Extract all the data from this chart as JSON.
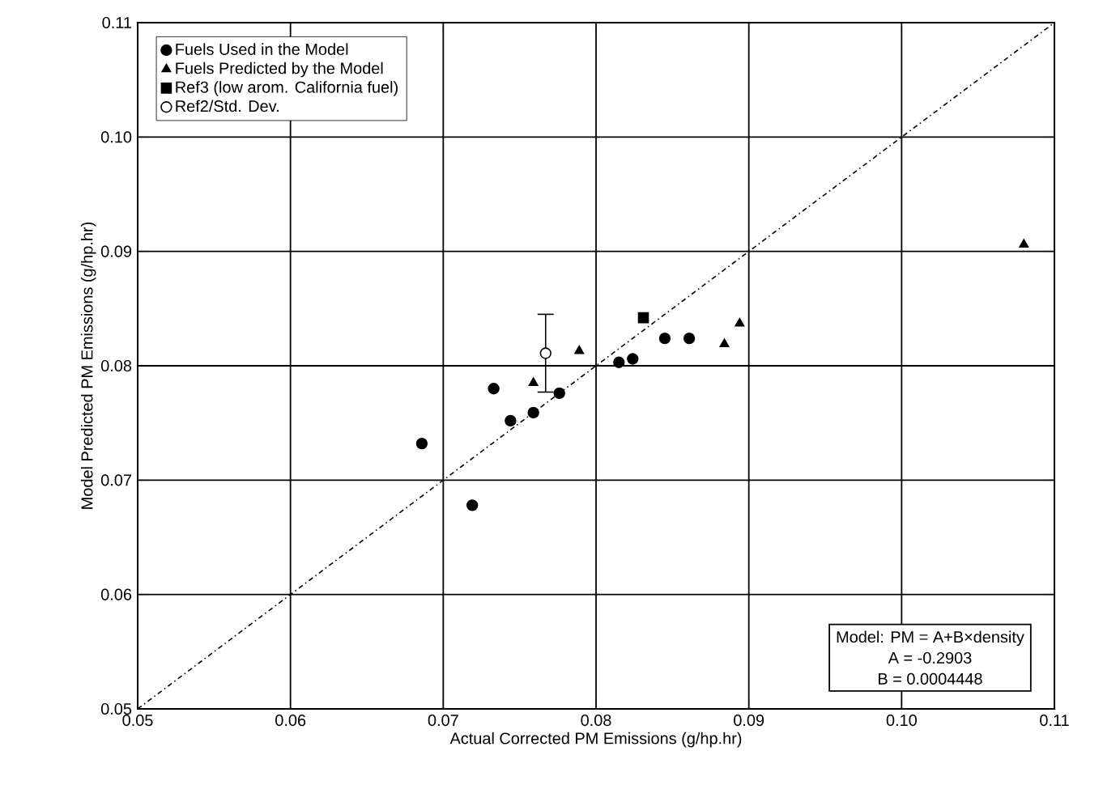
{
  "chart_data": {
    "type": "scatter",
    "xlabel": "Actual Corrected PM Emissions (g/hp.hr)",
    "ylabel": "Model Predicted PM Emissions (g/hp.hr)",
    "xlim": [
      0.05,
      0.11
    ],
    "ylim": [
      0.05,
      0.11
    ],
    "xticks": [
      0.05,
      0.06,
      0.07,
      0.08,
      0.09,
      {
        "value": 0.1,
        "label": "0.10"
      },
      0.11
    ],
    "yticks": [
      0.05,
      0.06,
      0.07,
      0.08,
      0.09,
      {
        "value": 0.1,
        "label": "0.10"
      },
      0.11
    ],
    "grid": true,
    "legend": "top left",
    "annotations": [
      "Model: PM = A+B×density",
      "A = -0.2903",
      "B = 0.0004448"
    ],
    "series": [
      {
        "name": "Fuels Used in the Model",
        "color": "#000000",
        "marker": "circle",
        "x": [
          0.0686,
          0.0719,
          0.0733,
          0.0744,
          0.0759,
          0.0776,
          0.0815,
          0.0824,
          0.0845,
          0.0861
        ],
        "values": [
          0.0732,
          0.0678,
          0.078,
          0.0752,
          0.0759,
          0.0776,
          0.0803,
          0.0806,
          0.0824,
          0.0824
        ]
      },
      {
        "name": "Fuels Predicted by the Model",
        "color": "#000000",
        "marker": "triangle",
        "x": [
          0.0759,
          0.0789,
          0.0884,
          0.0894,
          0.108
        ],
        "values": [
          0.0785,
          0.0813,
          0.0819,
          0.0837,
          0.0906
        ]
      },
      {
        "name": "Ref3 (low arom. California fuel)",
        "color": "#000000",
        "marker": "square",
        "x": [
          0.0831
        ],
        "values": [
          0.0842
        ]
      },
      {
        "name": "Ref2/Std. Dev.",
        "color": "#ffffff",
        "marker": "circle",
        "x": [
          0.0767
        ],
        "values": [
          0.0811
        ],
        "errors": [
          0.0034
        ]
      },
      {
        "type": "line",
        "color": "#000000",
        "line_style": "dashed",
        "marker": "none",
        "x": [
          0.05,
          0.11
        ],
        "values": [
          0.05,
          0.11
        ]
      }
    ]
  }
}
